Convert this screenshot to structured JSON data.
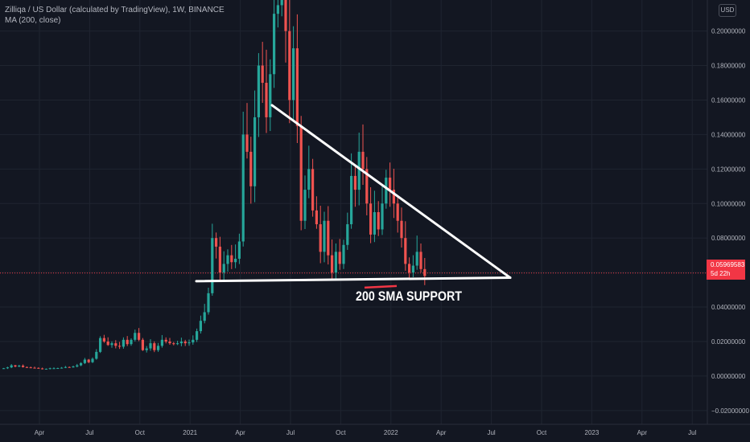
{
  "header": {
    "symbol_line": "Zilliqa / US Dollar (calculated by TradingView), 1W, BINANCE",
    "indicator_line": "MA (200, close)",
    "currency": "USD"
  },
  "price_tag": {
    "price": "0.05969583",
    "countdown": "5d 22h"
  },
  "annotation": {
    "text": "200 SMA SUPPORT"
  },
  "colors": {
    "background": "#131722",
    "up": "#26a69a",
    "down": "#ef5350",
    "annotation_line": "#ffffff",
    "support_underline": "#f23645",
    "grid": "#1f2430",
    "axis_text": "#b2b5be"
  },
  "chart_data": {
    "type": "candlestick",
    "ylim": [
      -0.028,
      0.218
    ],
    "y_ticks": [
      "0.20000000",
      "0.18000000",
      "0.16000000",
      "0.14000000",
      "0.12000000",
      "0.10000000",
      "0.08000000",
      "0.06000000",
      "0.04000000",
      "0.02000000",
      "0.00000000",
      "−0.02000000"
    ],
    "x_ticks": [
      "Apr",
      "Jul",
      "Oct",
      "2021",
      "Apr",
      "Jul",
      "Oct",
      "2022",
      "Apr",
      "Jul",
      "Oct",
      "2023",
      "Apr",
      "Jul"
    ],
    "candles_weekly_close": [
      0.0045,
      0.005,
      0.0062,
      0.0055,
      0.006,
      0.0052,
      0.005,
      0.0048,
      0.0047,
      0.0044,
      0.0042,
      0.0042,
      0.0045,
      0.0045,
      0.0046,
      0.0048,
      0.0052,
      0.005,
      0.0055,
      0.0062,
      0.0075,
      0.0095,
      0.008,
      0.01,
      0.014,
      0.022,
      0.02,
      0.018,
      0.019,
      0.0175,
      0.017,
      0.021,
      0.0185,
      0.021,
      0.025,
      0.021,
      0.015,
      0.016,
      0.019,
      0.015,
      0.0175,
      0.021,
      0.02,
      0.019,
      0.0185,
      0.019,
      0.02,
      0.019,
      0.0195,
      0.021,
      0.026,
      0.032,
      0.037,
      0.048,
      0.08,
      0.075,
      0.06,
      0.065,
      0.07,
      0.066,
      0.068,
      0.078,
      0.14,
      0.13,
      0.11,
      0.15,
      0.18,
      0.17,
      0.15,
      0.175,
      0.21,
      0.215,
      0.22,
      0.2,
      0.16,
      0.19,
      0.145,
      0.09,
      0.108,
      0.12,
      0.096,
      0.088,
      0.072,
      0.09,
      0.07,
      0.06,
      0.072,
      0.065,
      0.076,
      0.088,
      0.116,
      0.108,
      0.13,
      0.12,
      0.1,
      0.082,
      0.095,
      0.085,
      0.1,
      0.115,
      0.108,
      0.1,
      0.09,
      0.08,
      0.065,
      0.06,
      0.064,
      0.072,
      0.062,
      0.058
    ],
    "last_price": 0.05969583,
    "overlays": {
      "triangle_top_start": [
        "2021-06",
        0.157
      ],
      "apex": [
        "2022-07",
        0.057
      ],
      "support_y": 0.055,
      "support_start": "2021-01"
    }
  }
}
